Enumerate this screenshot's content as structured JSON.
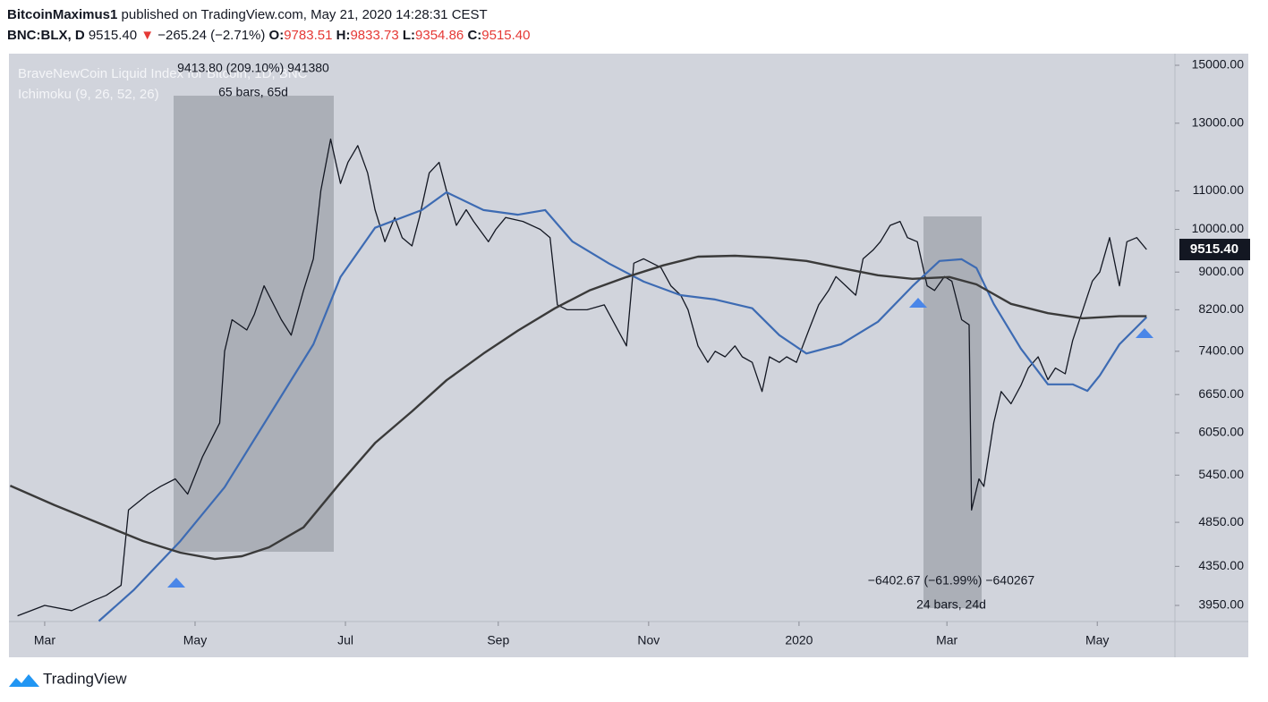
{
  "header": {
    "author": "BitcoinMaximus1",
    "published": "published on TradingView.com, May 21, 2020 14:28:31 CEST",
    "symbol": "BNC:BLX, D",
    "last": "9515.40",
    "arrow": "▼",
    "change": "−265.24 (−2.71%)",
    "o_label": "O:",
    "o": "9783.51",
    "h_label": "H:",
    "h": "9833.73",
    "l_label": "L:",
    "l": "9354.86",
    "c_label": "C:",
    "c": "9515.40"
  },
  "footer": {
    "brand": "TradingView"
  },
  "chart_data": {
    "type": "line",
    "title": "BraveNewCoin Liquid Index for Bitcoin, 1D, BNC",
    "subtitle": "Ichimoku (9, 26, 52, 26)",
    "log_scale": true,
    "grid": false,
    "xlim": [
      44.5,
      517.5
    ],
    "xticks": [
      {
        "value": 59,
        "label": "Mar"
      },
      {
        "value": 120,
        "label": "May"
      },
      {
        "value": 181,
        "label": "Jul"
      },
      {
        "value": 243,
        "label": "Sep"
      },
      {
        "value": 304,
        "label": "Nov"
      },
      {
        "value": 365,
        "label": "2020"
      },
      {
        "value": 425,
        "label": "Mar"
      },
      {
        "value": 486,
        "label": "May"
      }
    ],
    "ylim": [
      3796,
      15437
    ],
    "yticks": [
      {
        "value": 3950,
        "label": "3950.00"
      },
      {
        "value": 4350,
        "label": "4350.00"
      },
      {
        "value": 4850,
        "label": "4850.00"
      },
      {
        "value": 5450,
        "label": "5450.00"
      },
      {
        "value": 6050,
        "label": "6050.00"
      },
      {
        "value": 6650,
        "label": "6650.00"
      },
      {
        "value": 7400,
        "label": "7400.00"
      },
      {
        "value": 8200,
        "label": "8200.00"
      },
      {
        "value": 9000,
        "label": "9000.00"
      },
      {
        "value": 10000,
        "label": "10000.00"
      },
      {
        "value": 11000,
        "label": "11000.00"
      },
      {
        "value": 13000,
        "label": "13000.00"
      },
      {
        "value": 15000,
        "label": "15000.00"
      }
    ],
    "last_price": {
      "value": 9515.4,
      "label": "9515.40"
    },
    "series": [
      {
        "color": "#131722",
        "width": 1.3,
        "x": [
          48,
          59,
          70,
          79,
          84,
          90,
          93,
          101,
          106,
          112,
          117,
          123,
          130,
          132,
          135,
          141,
          144,
          148,
          155,
          159,
          164,
          168,
          171,
          175,
          179,
          182,
          186,
          190,
          193,
          197,
          201,
          204,
          208,
          211,
          215,
          219,
          222,
          226,
          230,
          233,
          239,
          242,
          246,
          253,
          260,
          264,
          267,
          271,
          279,
          286,
          295,
          298,
          302,
          309,
          313,
          317,
          320,
          324,
          328,
          331,
          335,
          339,
          342,
          346,
          350,
          353,
          357,
          360,
          364,
          369,
          373,
          377,
          380,
          384,
          388,
          391,
          395,
          398,
          402,
          406,
          409,
          413,
          417,
          420,
          424,
          427,
          431,
          434,
          435,
          438,
          440,
          444,
          447,
          451,
          455,
          458,
          462,
          466,
          469,
          473,
          476,
          484,
          487,
          491,
          495,
          498,
          502,
          506
        ],
        "values": [
          3850,
          3950,
          3900,
          4000,
          4050,
          4150,
          5000,
          5200,
          5300,
          5400,
          5200,
          5700,
          6200,
          7400,
          8000,
          7800,
          8100,
          8700,
          8000,
          7700,
          8600,
          9300,
          11000,
          12500,
          11200,
          11800,
          12300,
          11500,
          10500,
          9700,
          10300,
          9800,
          9600,
          10300,
          11500,
          11800,
          11000,
          10100,
          10500,
          10200,
          9700,
          10000,
          10300,
          10200,
          10000,
          9800,
          8300,
          8200,
          8200,
          8300,
          7500,
          9200,
          9300,
          9100,
          8700,
          8500,
          8200,
          7500,
          7200,
          7400,
          7300,
          7500,
          7300,
          7200,
          6700,
          7300,
          7200,
          7300,
          7200,
          7800,
          8300,
          8600,
          8900,
          8700,
          8500,
          9300,
          9500,
          9700,
          10100,
          10200,
          9800,
          9700,
          8700,
          8600,
          8900,
          8800,
          8000,
          7900,
          5000,
          5400,
          5300,
          6200,
          6700,
          6500,
          6800,
          7100,
          7300,
          6900,
          7100,
          7000,
          7600,
          8800,
          9000,
          9800,
          8700,
          9700,
          9800,
          9515.4
        ]
      },
      {
        "color": "#3d6bb3",
        "width": 2.2,
        "x": [
          81,
          95,
          114,
          132,
          150,
          168,
          179,
          193,
          212,
          222,
          237,
          251,
          262,
          273,
          288,
          302,
          317,
          331,
          346,
          357,
          368,
          382,
          397,
          411,
          422,
          431,
          437,
          444,
          455,
          466,
          476,
          482,
          487,
          495,
          506
        ],
        "values": [
          3800,
          4100,
          4630,
          5290,
          6310,
          7530,
          8890,
          10040,
          10490,
          10960,
          10490,
          10370,
          10490,
          9710,
          9190,
          8790,
          8500,
          8410,
          8230,
          7700,
          7360,
          7530,
          7960,
          8690,
          9250,
          9290,
          9090,
          8320,
          7450,
          6820,
          6820,
          6710,
          6970,
          7530,
          8050
        ]
      },
      {
        "color": "#3a3a3a",
        "width": 2.4,
        "x": [
          45,
          63,
          81,
          99,
          114,
          128,
          139,
          150,
          164,
          179,
          193,
          208,
          222,
          237,
          251,
          266,
          280,
          295,
          310,
          324,
          339,
          353,
          368,
          382,
          397,
          411,
          426,
          437,
          451,
          466,
          480,
          495,
          506
        ],
        "values": [
          5310,
          5060,
          4840,
          4630,
          4500,
          4430,
          4460,
          4560,
          4790,
          5350,
          5900,
          6380,
          6890,
          7360,
          7790,
          8230,
          8600,
          8890,
          9150,
          9350,
          9370,
          9330,
          9250,
          9090,
          8930,
          8850,
          8890,
          8730,
          8320,
          8130,
          8030,
          8070,
          8070
        ]
      }
    ],
    "annotations": [
      "9413.80 (209.10%) 941380",
      "65 bars, 65d",
      "−6402.67 (−61.99%) −640267",
      "24 bars, 24d"
    ]
  }
}
